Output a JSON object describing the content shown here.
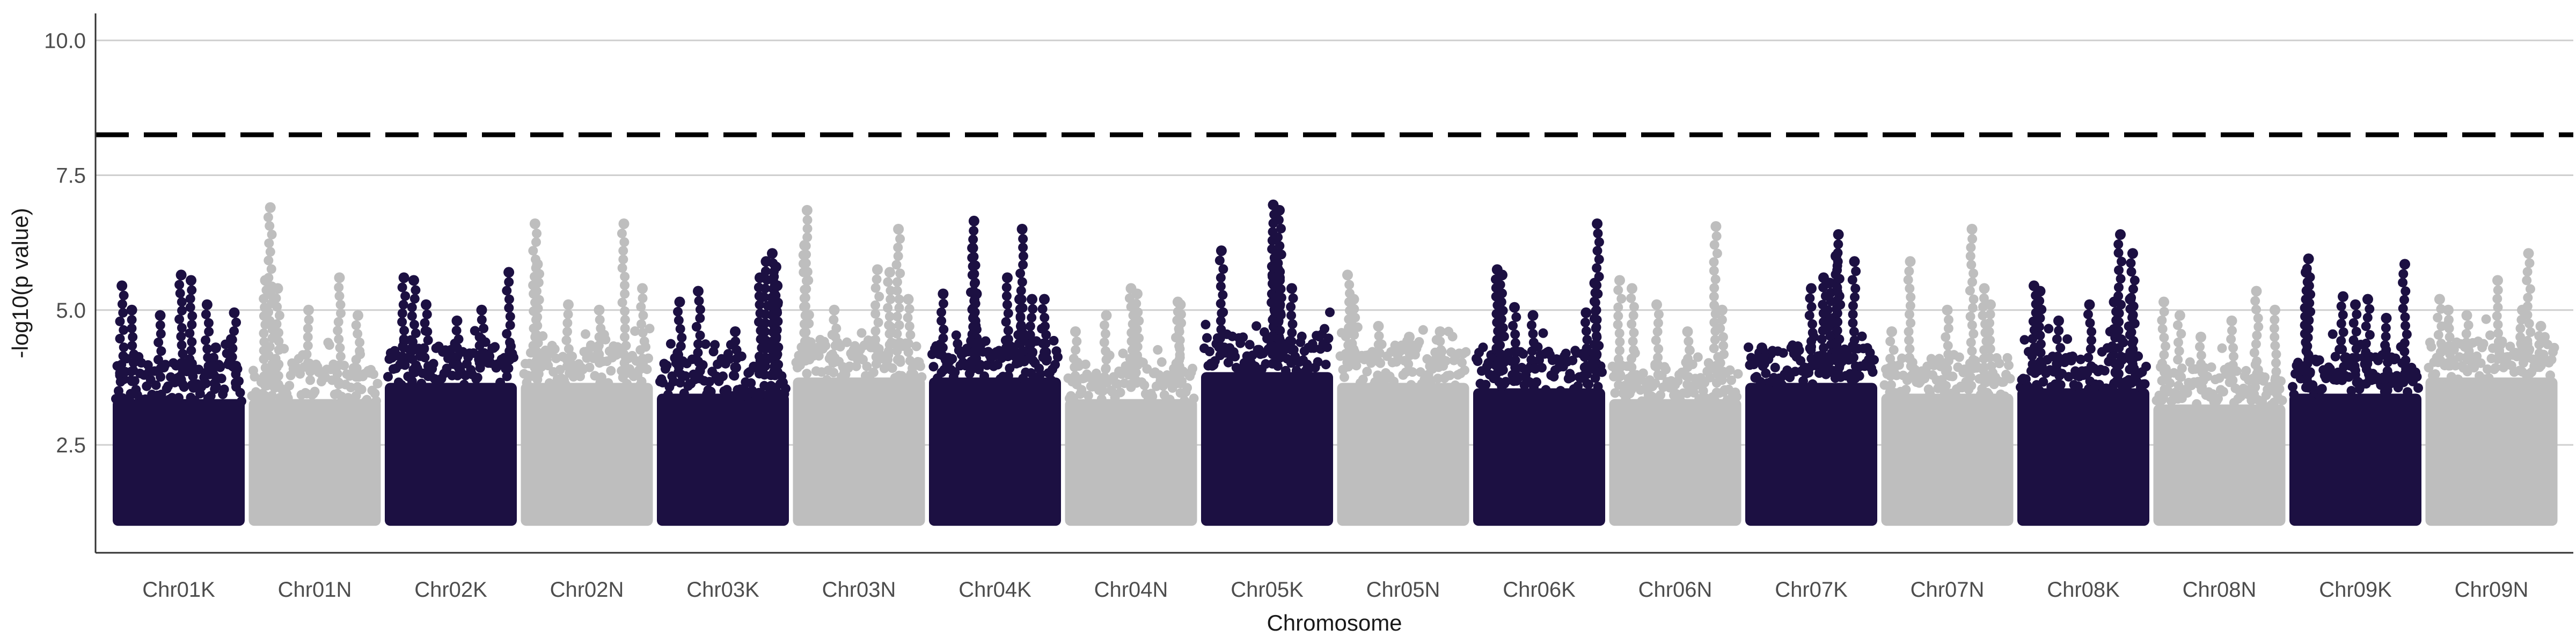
{
  "chart_data": {
    "type": "scatter",
    "subtype": "manhattan",
    "title": "",
    "xlabel": "Chromosome",
    "ylabel": "-log10(p value)",
    "ylim": [
      0.5,
      10.5
    ],
    "yticks": [
      2.5,
      5.0,
      7.5,
      10.0
    ],
    "ytick_labels": [
      "2.5",
      "5.0",
      "7.5",
      "10.0"
    ],
    "grid": "horizontal major",
    "threshold": {
      "value": 8.25,
      "style": "dashed",
      "color": "#000000"
    },
    "colors": {
      "odd": "#1c1042",
      "even": "#bebebe"
    },
    "point_floor": 1.0,
    "categories": [
      "Chr01K",
      "Chr01N",
      "Chr02K",
      "Chr02N",
      "Chr03K",
      "Chr03N",
      "Chr04K",
      "Chr04N",
      "Chr05K",
      "Chr05N",
      "Chr06K",
      "Chr06N",
      "Chr07K",
      "Chr07N",
      "Chr08K",
      "Chr08N",
      "Chr09K",
      "Chr09N"
    ],
    "series": [
      {
        "name": "Chr01K",
        "color": "#1c1042",
        "band_top": 3.9,
        "peaks": [
          [
            0.04,
            5.45
          ],
          [
            0.12,
            5.0
          ],
          [
            0.35,
            4.9
          ],
          [
            0.52,
            5.65
          ],
          [
            0.6,
            5.55
          ],
          [
            0.73,
            5.1
          ],
          [
            0.8,
            4.3
          ],
          [
            0.95,
            4.95
          ]
        ]
      },
      {
        "name": "Chr01N",
        "color": "#bebebe",
        "band_top": 3.9,
        "peaks": [
          [
            0.14,
            6.9
          ],
          [
            0.1,
            5.55
          ],
          [
            0.2,
            5.4
          ],
          [
            0.45,
            5.0
          ],
          [
            0.7,
            5.6
          ],
          [
            0.85,
            4.9
          ]
        ]
      },
      {
        "name": "Chr02K",
        "color": "#1c1042",
        "band_top": 4.2,
        "peaks": [
          [
            0.12,
            5.6
          ],
          [
            0.2,
            5.55
          ],
          [
            0.3,
            5.1
          ],
          [
            0.55,
            4.8
          ],
          [
            0.75,
            5.0
          ],
          [
            0.97,
            5.7
          ]
        ]
      },
      {
        "name": "Chr02N",
        "color": "#bebebe",
        "band_top": 4.2,
        "peaks": [
          [
            0.08,
            6.6
          ],
          [
            0.1,
            5.85
          ],
          [
            0.35,
            5.1
          ],
          [
            0.6,
            5.0
          ],
          [
            0.8,
            6.6
          ],
          [
            0.95,
            5.4
          ]
        ]
      },
      {
        "name": "Chr03K",
        "color": "#1c1042",
        "band_top": 4.0,
        "peaks": [
          [
            0.15,
            5.15
          ],
          [
            0.3,
            5.35
          ],
          [
            0.6,
            4.6
          ],
          [
            0.85,
            5.9
          ],
          [
            0.8,
            5.6
          ],
          [
            0.9,
            6.05
          ],
          [
            0.93,
            5.8
          ],
          [
            0.94,
            5.45
          ]
        ]
      },
      {
        "name": "Chr03N",
        "color": "#bebebe",
        "band_top": 4.3,
        "peaks": [
          [
            0.08,
            6.85
          ],
          [
            0.06,
            6.2
          ],
          [
            0.3,
            5.0
          ],
          [
            0.65,
            5.75
          ],
          [
            0.75,
            5.7
          ],
          [
            0.82,
            6.5
          ],
          [
            0.9,
            5.2
          ]
        ]
      },
      {
        "name": "Chr04K",
        "color": "#1c1042",
        "band_top": 4.3,
        "peaks": [
          [
            0.08,
            5.3
          ],
          [
            0.35,
            5.3
          ],
          [
            0.32,
            6.15
          ],
          [
            0.33,
            6.65
          ],
          [
            0.6,
            5.6
          ],
          [
            0.7,
            5.2
          ],
          [
            0.72,
            6.5
          ],
          [
            0.8,
            5.2
          ],
          [
            0.9,
            5.2
          ]
        ]
      },
      {
        "name": "Chr04N",
        "color": "#bebebe",
        "band_top": 3.9,
        "peaks": [
          [
            0.05,
            4.6
          ],
          [
            0.3,
            4.9
          ],
          [
            0.5,
            5.4
          ],
          [
            0.55,
            5.3
          ],
          [
            0.88,
            5.15
          ],
          [
            0.9,
            5.1
          ]
        ]
      },
      {
        "name": "Chr05K",
        "color": "#1c1042",
        "band_top": 4.4,
        "peaks": [
          [
            0.13,
            6.1
          ],
          [
            0.55,
            6.95
          ],
          [
            0.6,
            6.85
          ],
          [
            0.58,
            6.1
          ],
          [
            0.55,
            5.8
          ],
          [
            0.6,
            5.6
          ],
          [
            0.7,
            5.4
          ]
        ]
      },
      {
        "name": "Chr05N",
        "color": "#bebebe",
        "band_top": 4.2,
        "peaks": [
          [
            0.05,
            5.65
          ],
          [
            0.1,
            5.2
          ],
          [
            0.3,
            4.7
          ],
          [
            0.55,
            4.5
          ],
          [
            0.8,
            4.6
          ]
        ]
      },
      {
        "name": "Chr06K",
        "color": "#1c1042",
        "band_top": 4.1,
        "peaks": [
          [
            0.16,
            5.75
          ],
          [
            0.2,
            5.65
          ],
          [
            0.3,
            5.05
          ],
          [
            0.45,
            4.9
          ],
          [
            0.88,
            4.95
          ],
          [
            0.95,
            5.5
          ],
          [
            0.97,
            6.6
          ]
        ]
      },
      {
        "name": "Chr06N",
        "color": "#bebebe",
        "band_top": 3.9,
        "peaks": [
          [
            0.05,
            5.55
          ],
          [
            0.15,
            5.4
          ],
          [
            0.35,
            5.1
          ],
          [
            0.6,
            4.6
          ],
          [
            0.83,
            6.55
          ],
          [
            0.88,
            5.0
          ]
        ]
      },
      {
        "name": "Chr07K",
        "color": "#1c1042",
        "band_top": 4.2,
        "peaks": [
          [
            0.1,
            4.3
          ],
          [
            0.5,
            5.4
          ],
          [
            0.6,
            5.6
          ],
          [
            0.65,
            5.5
          ],
          [
            0.7,
            6.0
          ],
          [
            0.72,
            6.4
          ],
          [
            0.85,
            5.9
          ]
        ]
      },
      {
        "name": "Chr07N",
        "color": "#bebebe",
        "band_top": 4.0,
        "peaks": [
          [
            0.05,
            4.6
          ],
          [
            0.2,
            5.9
          ],
          [
            0.5,
            5.0
          ],
          [
            0.7,
            6.5
          ],
          [
            0.8,
            5.4
          ],
          [
            0.85,
            5.1
          ]
        ]
      },
      {
        "name": "Chr08K",
        "color": "#1c1042",
        "band_top": 4.1,
        "peaks": [
          [
            0.1,
            5.45
          ],
          [
            0.15,
            5.35
          ],
          [
            0.3,
            4.8
          ],
          [
            0.55,
            5.1
          ],
          [
            0.75,
            5.15
          ],
          [
            0.8,
            6.4
          ],
          [
            0.9,
            6.05
          ],
          [
            0.88,
            5.2
          ]
        ]
      },
      {
        "name": "Chr08N",
        "color": "#bebebe",
        "band_top": 3.8,
        "peaks": [
          [
            0.05,
            5.15
          ],
          [
            0.18,
            4.9
          ],
          [
            0.35,
            4.5
          ],
          [
            0.6,
            4.8
          ],
          [
            0.8,
            5.35
          ],
          [
            0.95,
            5.0
          ]
        ]
      },
      {
        "name": "Chr09K",
        "color": "#1c1042",
        "band_top": 4.0,
        "peaks": [
          [
            0.12,
            5.95
          ],
          [
            0.1,
            5.7
          ],
          [
            0.4,
            5.25
          ],
          [
            0.5,
            5.1
          ],
          [
            0.6,
            5.2
          ],
          [
            0.75,
            4.85
          ],
          [
            0.9,
            5.85
          ]
        ]
      },
      {
        "name": "Chr09N",
        "color": "#bebebe",
        "band_top": 4.3,
        "peaks": [
          [
            0.08,
            5.2
          ],
          [
            0.15,
            5.0
          ],
          [
            0.3,
            4.9
          ],
          [
            0.55,
            5.55
          ],
          [
            0.75,
            5.0
          ],
          [
            0.8,
            6.05
          ],
          [
            0.9,
            4.7
          ]
        ]
      }
    ]
  }
}
